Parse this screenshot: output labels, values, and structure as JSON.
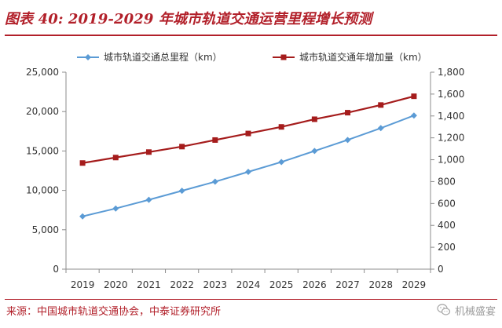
{
  "header": {
    "title": "图表 40: 2019-2029 年城市轨道交通运营里程增长预测"
  },
  "chart_data": {
    "type": "line",
    "x": [
      "2019",
      "2020",
      "2021",
      "2022",
      "2023",
      "2024",
      "2025",
      "2026",
      "2027",
      "2028",
      "2029"
    ],
    "series": [
      {
        "name": "城市轨道交通总里程（km）",
        "axis": "left",
        "color": "#5b9bd5",
        "marker": "diamond",
        "values": [
          6700,
          7700,
          8800,
          9950,
          11100,
          12350,
          13600,
          15000,
          16400,
          17900,
          19500
        ]
      },
      {
        "name": "城市轨道交通年增加量（km）",
        "axis": "right",
        "color": "#a51c1c",
        "marker": "square",
        "values": [
          970,
          1020,
          1070,
          1120,
          1180,
          1240,
          1300,
          1370,
          1430,
          1500,
          1580
        ]
      }
    ],
    "left_axis": {
      "ylim": [
        0,
        25000
      ],
      "ticks": [
        0,
        5000,
        10000,
        15000,
        20000,
        25000
      ],
      "tick_labels": [
        "0",
        "5,000",
        "10,000",
        "15,000",
        "20,000",
        "25,000"
      ]
    },
    "right_axis": {
      "ylim": [
        0,
        1800
      ],
      "ticks": [
        0,
        200,
        400,
        600,
        800,
        1000,
        1200,
        1400,
        1600,
        1800
      ],
      "tick_labels": [
        "0",
        "200",
        "400",
        "600",
        "800",
        "1,000",
        "1,200",
        "1,400",
        "1,600",
        "1,800"
      ]
    },
    "legend_position": "top",
    "grid": false,
    "title": "",
    "xlabel": "",
    "ylabel": ""
  },
  "footer": {
    "source": "来源：中国城市轨道交通协会，中泰证券研究所",
    "watermark": "机械盛宴"
  }
}
